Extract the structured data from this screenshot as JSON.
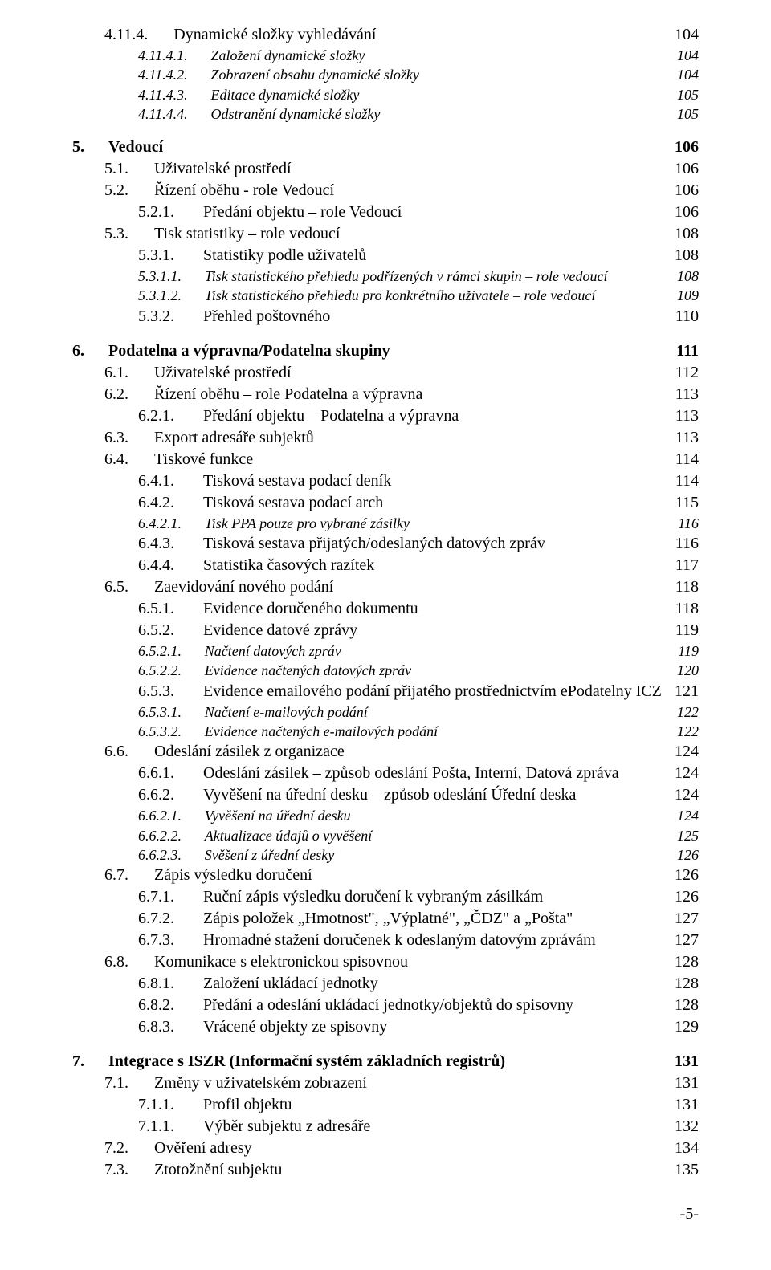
{
  "fontSize": {
    "h1": 20,
    "h2": 20,
    "h3": 20,
    "normal": 20,
    "small": 18
  },
  "indent": {
    "lvl0": 0,
    "lvl1": 40,
    "lvl2": 82,
    "lvl2b": 40,
    "lvl3": 82,
    "lvl4": 82
  },
  "footer": "-5-",
  "entries": [
    {
      "num": "4.11.4.",
      "title": "Dynamické složky vyhledávání",
      "page": "104",
      "style": "normal",
      "indent": 40
    },
    {
      "num": "4.11.4.1.",
      "title": "Založení dynamické složky",
      "page": "104",
      "style": "italic",
      "indent": 82,
      "size": "small"
    },
    {
      "num": "4.11.4.2.",
      "title": "Zobrazení obsahu dynamické složky",
      "page": "104",
      "style": "italic",
      "indent": 82,
      "size": "small"
    },
    {
      "num": "4.11.4.3.",
      "title": "Editace dynamické složky",
      "page": "105",
      "style": "italic",
      "indent": 82,
      "size": "small"
    },
    {
      "num": "4.11.4.4.",
      "title": "Odstranění dynamické složky",
      "page": "105",
      "style": "italic",
      "indent": 82,
      "size": "small"
    },
    {
      "num": "5.",
      "title": "Vedoucí",
      "page": "106",
      "style": "bold",
      "indent": 0
    },
    {
      "num": "5.1.",
      "title": "Uživatelské prostředí",
      "page": "106",
      "style": "normal",
      "indent": 40
    },
    {
      "num": "5.2.",
      "title": "Řízení oběhu - role Vedoucí",
      "page": "106",
      "style": "normal",
      "indent": 40
    },
    {
      "num": "5.2.1.",
      "title": "Předání objektu – role Vedoucí",
      "page": "106",
      "style": "normal",
      "indent": 82
    },
    {
      "num": "5.3.",
      "title": "Tisk statistiky – role vedoucí",
      "page": "108",
      "style": "normal",
      "indent": 40
    },
    {
      "num": "5.3.1.",
      "title": "Statistiky podle uživatelů",
      "page": "108",
      "style": "normal",
      "indent": 82
    },
    {
      "num": "5.3.1.1.",
      "title": "Tisk statistického přehledu podřízených v rámci skupin – role vedoucí",
      "page": "108",
      "style": "italic",
      "indent": 82,
      "size": "small"
    },
    {
      "num": "5.3.1.2.",
      "title": "Tisk statistického přehledu pro konkrétního uživatele – role vedoucí",
      "page": "109",
      "style": "italic",
      "indent": 82,
      "size": "small"
    },
    {
      "num": "5.3.2.",
      "title": "Přehled poštovného",
      "page": "110",
      "style": "normal",
      "indent": 82
    },
    {
      "num": "6.",
      "title": "Podatelna a výpravna/Podatelna skupiny",
      "page": "111",
      "style": "bold",
      "indent": 0
    },
    {
      "num": "6.1.",
      "title": "Uživatelské prostředí",
      "page": "112",
      "style": "normal",
      "indent": 40
    },
    {
      "num": "6.2.",
      "title": "Řízení oběhu – role Podatelna a výpravna",
      "page": "113",
      "style": "normal",
      "indent": 40
    },
    {
      "num": "6.2.1.",
      "title": "Předání objektu – Podatelna a výpravna",
      "page": "113",
      "style": "normal",
      "indent": 82
    },
    {
      "num": "6.3.",
      "title": "Export adresáře subjektů",
      "page": "113",
      "style": "normal",
      "indent": 40
    },
    {
      "num": "6.4.",
      "title": "Tiskové funkce",
      "page": "114",
      "style": "normal",
      "indent": 40
    },
    {
      "num": "6.4.1.",
      "title": "Tisková sestava podací deník",
      "page": "114",
      "style": "normal",
      "indent": 82
    },
    {
      "num": "6.4.2.",
      "title": "Tisková sestava podací arch",
      "page": "115",
      "style": "normal",
      "indent": 82
    },
    {
      "num": "6.4.2.1.",
      "title": "Tisk PPA pouze pro vybrané zásilky",
      "page": "116",
      "style": "italic",
      "indent": 82,
      "size": "small"
    },
    {
      "num": "6.4.3.",
      "title": "Tisková sestava přijatých/odeslaných datových zpráv",
      "page": "116",
      "style": "normal",
      "indent": 82
    },
    {
      "num": "6.4.4.",
      "title": "Statistika časových razítek",
      "page": "117",
      "style": "normal",
      "indent": 82
    },
    {
      "num": "6.5.",
      "title": "Zaevidování nového podání",
      "page": "118",
      "style": "normal",
      "indent": 40
    },
    {
      "num": "6.5.1.",
      "title": "Evidence doručeného dokumentu",
      "page": "118",
      "style": "normal",
      "indent": 82
    },
    {
      "num": "6.5.2.",
      "title": "Evidence datové zprávy",
      "page": "119",
      "style": "normal",
      "indent": 82
    },
    {
      "num": "6.5.2.1.",
      "title": "Načtení datových zpráv",
      "page": "119",
      "style": "italic",
      "indent": 82,
      "size": "small"
    },
    {
      "num": "6.5.2.2.",
      "title": "Evidence načtených datových zpráv",
      "page": "120",
      "style": "italic",
      "indent": 82,
      "size": "small"
    },
    {
      "num": "6.5.3.",
      "title": "Evidence emailového podání přijatého prostřednictvím ePodatelny ICZ",
      "page": "121",
      "style": "normal",
      "indent": 82
    },
    {
      "num": "6.5.3.1.",
      "title": "Načtení e-mailových podání",
      "page": "122",
      "style": "italic",
      "indent": 82,
      "size": "small"
    },
    {
      "num": "6.5.3.2.",
      "title": "Evidence načtených e-mailových podání",
      "page": "122",
      "style": "italic",
      "indent": 82,
      "size": "small"
    },
    {
      "num": "6.6.",
      "title": "Odeslání zásilek z organizace",
      "page": "124",
      "style": "normal",
      "indent": 40
    },
    {
      "num": "6.6.1.",
      "title": "Odeslání zásilek – způsob odeslání Pošta, Interní, Datová zpráva",
      "page": "124",
      "style": "normal",
      "indent": 82
    },
    {
      "num": "6.6.2.",
      "title": "Vyvěšení na úřední desku – způsob odeslání Úřední deska",
      "page": "124",
      "style": "normal",
      "indent": 82
    },
    {
      "num": "6.6.2.1.",
      "title": "Vyvěšení na úřední desku",
      "page": "124",
      "style": "italic",
      "indent": 82,
      "size": "small"
    },
    {
      "num": "6.6.2.2.",
      "title": "Aktualizace údajů o vyvěšení",
      "page": "125",
      "style": "italic",
      "indent": 82,
      "size": "small"
    },
    {
      "num": "6.6.2.3.",
      "title": "Svěšení z úřední desky",
      "page": "126",
      "style": "italic",
      "indent": 82,
      "size": "small"
    },
    {
      "num": "6.7.",
      "title": "Zápis výsledku doručení",
      "page": "126",
      "style": "normal",
      "indent": 40
    },
    {
      "num": "6.7.1.",
      "title": "Ruční zápis výsledku doručení k vybraným zásilkám",
      "page": "126",
      "style": "normal",
      "indent": 82
    },
    {
      "num": "6.7.2.",
      "title": "Zápis položek „Hmotnost\", „Výplatné\", „ČDZ\" a „Pošta\"",
      "page": "127",
      "style": "normal",
      "indent": 82
    },
    {
      "num": "6.7.3.",
      "title": "Hromadné stažení doručenek k odeslaným datovým zprávám",
      "page": "127",
      "style": "normal",
      "indent": 82
    },
    {
      "num": "6.8.",
      "title": "Komunikace s elektronickou spisovnou",
      "page": "128",
      "style": "normal",
      "indent": 40
    },
    {
      "num": "6.8.1.",
      "title": "Založení ukládací jednotky",
      "page": "128",
      "style": "normal",
      "indent": 82
    },
    {
      "num": "6.8.2.",
      "title": "Předání a odeslání ukládací jednotky/objektů do spisovny",
      "page": "128",
      "style": "normal",
      "indent": 82
    },
    {
      "num": "6.8.3.",
      "title": "Vrácené objekty ze spisovny",
      "page": "129",
      "style": "normal",
      "indent": 82
    },
    {
      "num": "7.",
      "title": "Integrace s ISZR (Informační systém základních registrů)",
      "page": "131",
      "style": "bold",
      "indent": 0
    },
    {
      "num": "7.1.",
      "title": "Změny v uživatelském zobrazení",
      "page": "131",
      "style": "normal",
      "indent": 40
    },
    {
      "num": "7.1.1.",
      "title": "Profil objektu",
      "page": "131",
      "style": "normal",
      "indent": 82
    },
    {
      "num": "7.1.1.",
      "title": "Výběr subjektu z adresáře",
      "page": "132",
      "style": "normal",
      "indent": 82
    },
    {
      "num": "7.2.",
      "title": "Ověření adresy",
      "page": "134",
      "style": "normal",
      "indent": 40
    },
    {
      "num": "7.3.",
      "title": "Ztotožnění subjektu",
      "page": "135",
      "style": "normal",
      "indent": 40
    }
  ]
}
